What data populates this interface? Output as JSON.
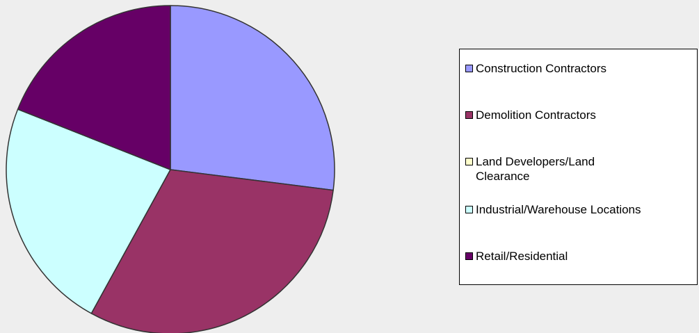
{
  "chart_data": {
    "type": "pie",
    "categories": [
      "Construction Contractors",
      "Demolition Contractors",
      "Land Developers/Land Clearance",
      "Industrial/Warehouse Locations",
      "Retail/Residential"
    ],
    "values": [
      27,
      31,
      0,
      23,
      19
    ],
    "colors": [
      "#9999ff",
      "#993366",
      "#ffffcc",
      "#ccffff",
      "#660066"
    ],
    "legend": "right"
  }
}
